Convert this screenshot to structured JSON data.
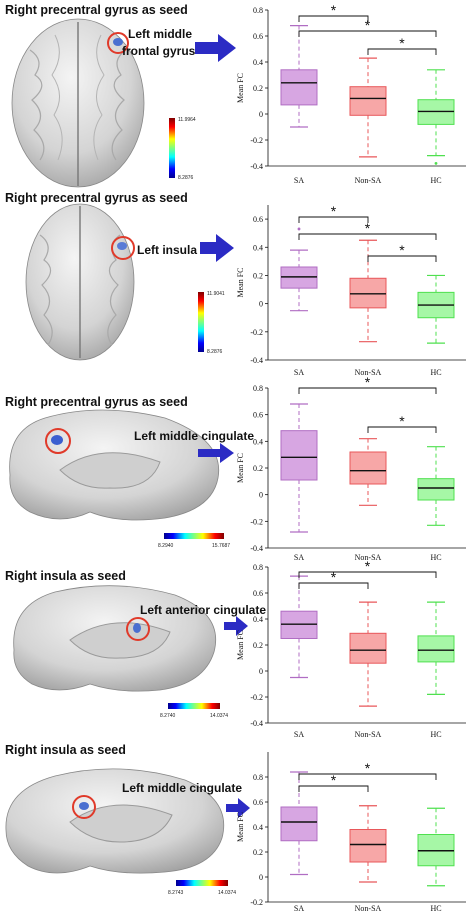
{
  "colors": {
    "SA": {
      "fill": "#d7a6e2",
      "stroke": "#b06dc3"
    },
    "Non-SA": {
      "fill": "#f7a7a7",
      "stroke": "#e8575a"
    },
    "HC": {
      "fill": "#a6f7a6",
      "stroke": "#4fe04f"
    },
    "arrow": "#2b2bc4",
    "circle": "#e03a2a"
  },
  "panels": [
    {
      "seed_title": "Right precentral gyrus as seed",
      "region_label": [
        "Left middle",
        "frontal gyrus"
      ],
      "colorbar": {
        "min": "8.2876",
        "max": "11.9964",
        "orientation": "vertical"
      },
      "brain_view": "axial"
    },
    {
      "seed_title": "Right precentral gyrus as seed",
      "region_label": [
        "Left insula"
      ],
      "colorbar": {
        "min": "8.2876",
        "max": "11.9041",
        "orientation": "vertical"
      },
      "brain_view": "axial"
    },
    {
      "seed_title": "Right precentral gyrus as seed",
      "region_label": [
        "Left middle cingulate"
      ],
      "colorbar": {
        "min": "8.2940",
        "max": "15.7687",
        "orientation": "horizontal"
      },
      "brain_view": "sagittal"
    },
    {
      "seed_title": "Right insula as seed",
      "region_label": [
        "Left anterior cingulate"
      ],
      "colorbar": {
        "min": "8.2740",
        "max": "14.0374",
        "orientation": "horizontal"
      },
      "brain_view": "sagittal"
    },
    {
      "seed_title": "Right insula as seed",
      "region_label": [
        "Left middle cingulate"
      ],
      "colorbar": {
        "min": "8.2743",
        "max": "14.0374",
        "orientation": "horizontal"
      },
      "brain_view": "sagittal"
    }
  ],
  "chart_data": [
    {
      "type": "box",
      "ylabel": "Mean FC",
      "categories": [
        "SA",
        "Non-SA",
        "HC"
      ],
      "ylim": [
        -0.4,
        0.8
      ],
      "yticks": [
        -0.4,
        -0.2,
        0,
        0.2,
        0.4,
        0.6,
        0.8
      ],
      "boxes": [
        {
          "group": "SA",
          "min": -0.1,
          "q1": 0.07,
          "median": 0.24,
          "q3": 0.34,
          "max": 0.68
        },
        {
          "group": "Non-SA",
          "min": -0.33,
          "q1": -0.01,
          "median": 0.12,
          "q3": 0.21,
          "max": 0.43
        },
        {
          "group": "HC",
          "min": -0.32,
          "q1": -0.08,
          "median": 0.02,
          "q3": 0.11,
          "max": 0.34
        }
      ],
      "outliers": [
        {
          "group": "HC",
          "value": -0.38
        }
      ],
      "significance": [
        {
          "from": "SA",
          "to": "Non-SA",
          "label": "*"
        },
        {
          "from": "SA",
          "to": "HC",
          "label": "*"
        },
        {
          "from": "Non-SA",
          "to": "HC",
          "label": "*"
        }
      ]
    },
    {
      "type": "box",
      "ylabel": "Mean FC",
      "categories": [
        "SA",
        "Non-SA",
        "HC"
      ],
      "ylim": [
        -0.4,
        0.7
      ],
      "yticks": [
        -0.4,
        -0.2,
        0,
        0.2,
        0.4,
        0.6
      ],
      "boxes": [
        {
          "group": "SA",
          "min": -0.05,
          "q1": 0.11,
          "median": 0.19,
          "q3": 0.26,
          "max": 0.38
        },
        {
          "group": "Non-SA",
          "min": -0.27,
          "q1": -0.03,
          "median": 0.07,
          "q3": 0.18,
          "max": 0.45
        },
        {
          "group": "HC",
          "min": -0.28,
          "q1": -0.1,
          "median": -0.01,
          "q3": 0.08,
          "max": 0.2
        }
      ],
      "outliers": [
        {
          "group": "SA",
          "value": 0.53
        }
      ],
      "significance": [
        {
          "from": "SA",
          "to": "Non-SA",
          "label": "*"
        },
        {
          "from": "SA",
          "to": "HC",
          "label": "*"
        },
        {
          "from": "Non-SA",
          "to": "HC",
          "label": "*"
        }
      ]
    },
    {
      "type": "box",
      "ylabel": "Mean FC",
      "categories": [
        "SA",
        "Non-SA",
        "HC"
      ],
      "ylim": [
        -0.4,
        0.8
      ],
      "yticks": [
        -0.4,
        -0.2,
        0,
        0.2,
        0.4,
        0.6,
        0.8
      ],
      "boxes": [
        {
          "group": "SA",
          "min": -0.28,
          "q1": 0.11,
          "median": 0.28,
          "q3": 0.48,
          "max": 0.68
        },
        {
          "group": "Non-SA",
          "min": -0.08,
          "q1": 0.08,
          "median": 0.18,
          "q3": 0.32,
          "max": 0.42
        },
        {
          "group": "HC",
          "min": -0.23,
          "q1": -0.04,
          "median": 0.05,
          "q3": 0.12,
          "max": 0.36
        }
      ],
      "outliers": [],
      "significance": [
        {
          "from": "SA",
          "to": "HC",
          "label": "*"
        },
        {
          "from": "Non-SA",
          "to": "HC",
          "label": "*"
        }
      ]
    },
    {
      "type": "box",
      "ylabel": "Mean FC",
      "categories": [
        "SA",
        "Non-SA",
        "HC"
      ],
      "ylim": [
        -0.4,
        0.8
      ],
      "yticks": [
        -0.4,
        -0.2,
        0,
        0.2,
        0.4,
        0.6,
        0.8
      ],
      "boxes": [
        {
          "group": "SA",
          "min": -0.05,
          "q1": 0.25,
          "median": 0.36,
          "q3": 0.46,
          "max": 0.73
        },
        {
          "group": "Non-SA",
          "min": -0.27,
          "q1": 0.06,
          "median": 0.16,
          "q3": 0.29,
          "max": 0.53
        },
        {
          "group": "HC",
          "min": -0.18,
          "q1": 0.07,
          "median": 0.16,
          "q3": 0.27,
          "max": 0.53
        }
      ],
      "outliers": [],
      "significance": [
        {
          "from": "SA",
          "to": "Non-SA",
          "label": "*"
        },
        {
          "from": "SA",
          "to": "HC",
          "label": "*"
        }
      ]
    },
    {
      "type": "box",
      "ylabel": "Mean FC",
      "categories": [
        "SA",
        "Non-SA",
        "HC"
      ],
      "ylim": [
        -0.2,
        1.0
      ],
      "yticks": [
        -0.2,
        0,
        0.2,
        0.4,
        0.6,
        0.8
      ],
      "boxes": [
        {
          "group": "SA",
          "min": 0.02,
          "q1": 0.29,
          "median": 0.44,
          "q3": 0.56,
          "max": 0.84
        },
        {
          "group": "Non-SA",
          "min": -0.04,
          "q1": 0.12,
          "median": 0.26,
          "q3": 0.38,
          "max": 0.57
        },
        {
          "group": "HC",
          "min": -0.07,
          "q1": 0.09,
          "median": 0.21,
          "q3": 0.34,
          "max": 0.55
        }
      ],
      "outliers": [],
      "significance": [
        {
          "from": "SA",
          "to": "Non-SA",
          "label": "*"
        },
        {
          "from": "SA",
          "to": "HC",
          "label": "*"
        }
      ]
    }
  ]
}
